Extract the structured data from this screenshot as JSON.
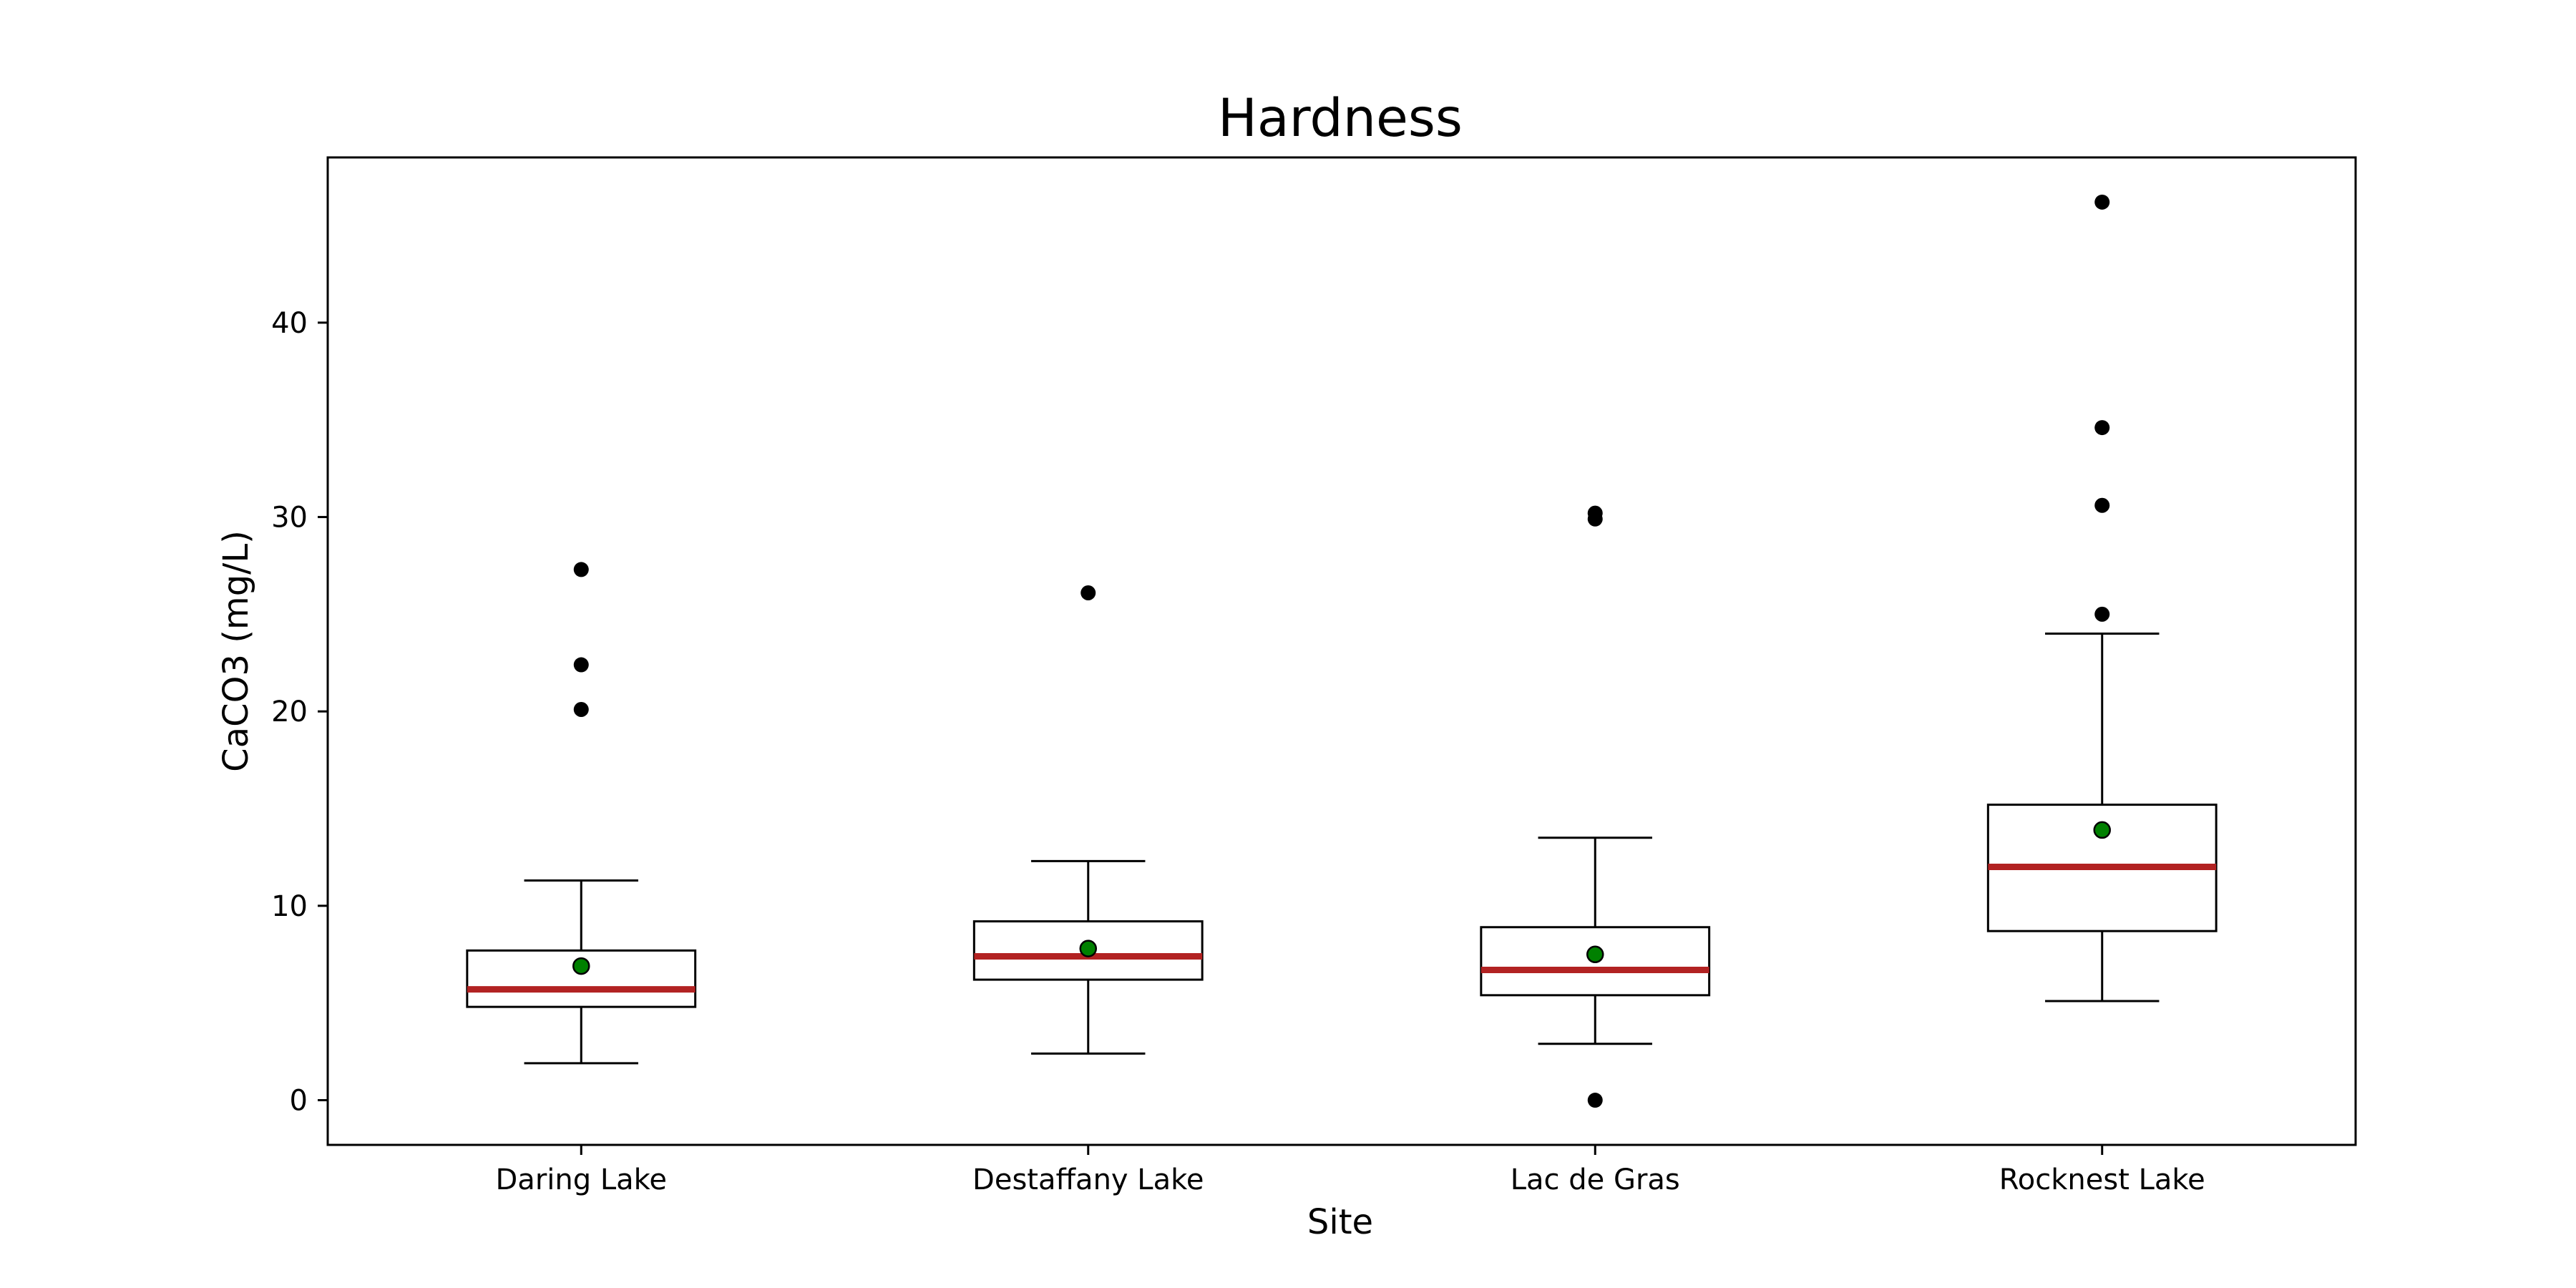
{
  "chart_data": {
    "type": "boxplot",
    "title": "Hardness",
    "xlabel": "Site",
    "ylabel": "CaCO3 (mg/L)",
    "ylim": [
      -2.3,
      48.5
    ],
    "yticks": [
      0,
      10,
      20,
      30,
      40
    ],
    "grid": false,
    "categories": [
      "Daring Lake",
      "Destaffany Lake",
      "Lac de Gras",
      "Rocknest Lake"
    ],
    "boxes": [
      {
        "category": "Daring Lake",
        "whisker_low": 1.9,
        "q1": 4.8,
        "median": 5.7,
        "q3": 7.7,
        "whisker_high": 11.3,
        "mean": 6.9,
        "outliers": [
          20.1,
          22.4,
          27.3
        ]
      },
      {
        "category": "Destaffany Lake",
        "whisker_low": 2.4,
        "q1": 6.2,
        "median": 7.4,
        "q3": 9.2,
        "whisker_high": 12.3,
        "mean": 7.8,
        "outliers": [
          26.1
        ]
      },
      {
        "category": "Lac de Gras",
        "whisker_low": 2.9,
        "q1": 5.4,
        "median": 6.7,
        "q3": 8.9,
        "whisker_high": 13.5,
        "mean": 7.5,
        "outliers": [
          0.0,
          29.9,
          30.2
        ]
      },
      {
        "category": "Rocknest Lake",
        "whisker_low": 5.1,
        "q1": 8.7,
        "median": 12.0,
        "q3": 15.2,
        "whisker_high": 24.0,
        "mean": 13.9,
        "outliers": [
          25.0,
          30.6,
          34.6,
          46.2
        ]
      }
    ],
    "colors": {
      "median": "#b22222",
      "mean": "#008000",
      "outlier": "#000000",
      "box": "#000000"
    }
  }
}
